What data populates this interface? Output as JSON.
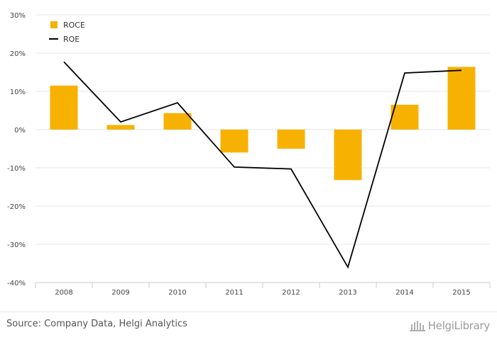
{
  "chart_data": {
    "type": "bar",
    "categories": [
      "2008",
      "2009",
      "2010",
      "2011",
      "2012",
      "2013",
      "2014",
      "2015"
    ],
    "series": [
      {
        "name": "ROCE",
        "kind": "bar",
        "color": "#F7B100",
        "values": [
          11.5,
          1.2,
          4.3,
          -6.0,
          -5.0,
          -13.2,
          6.5,
          16.4
        ]
      },
      {
        "name": "ROE",
        "kind": "line",
        "color": "#000000",
        "values": [
          17.7,
          2.0,
          7.0,
          -9.8,
          -10.3,
          -36.0,
          14.8,
          15.5
        ]
      }
    ],
    "ylim": [
      -40,
      30
    ],
    "yticks": [
      30,
      20,
      10,
      0,
      -10,
      -20,
      -30,
      -40
    ],
    "ytick_labels": [
      "30%",
      "20%",
      "10%",
      "0%",
      "-10%",
      "-20%",
      "-30%",
      "-40%"
    ],
    "grid": true,
    "legend_position": "top-left",
    "title": "",
    "xlabel": "",
    "ylabel": ""
  },
  "footer": {
    "source": "Source: Company Data, Helgi Analytics",
    "brand": "HelgiLibrary"
  },
  "colors": {
    "grid": "#e6e6e6",
    "axis": "#cccccc"
  }
}
